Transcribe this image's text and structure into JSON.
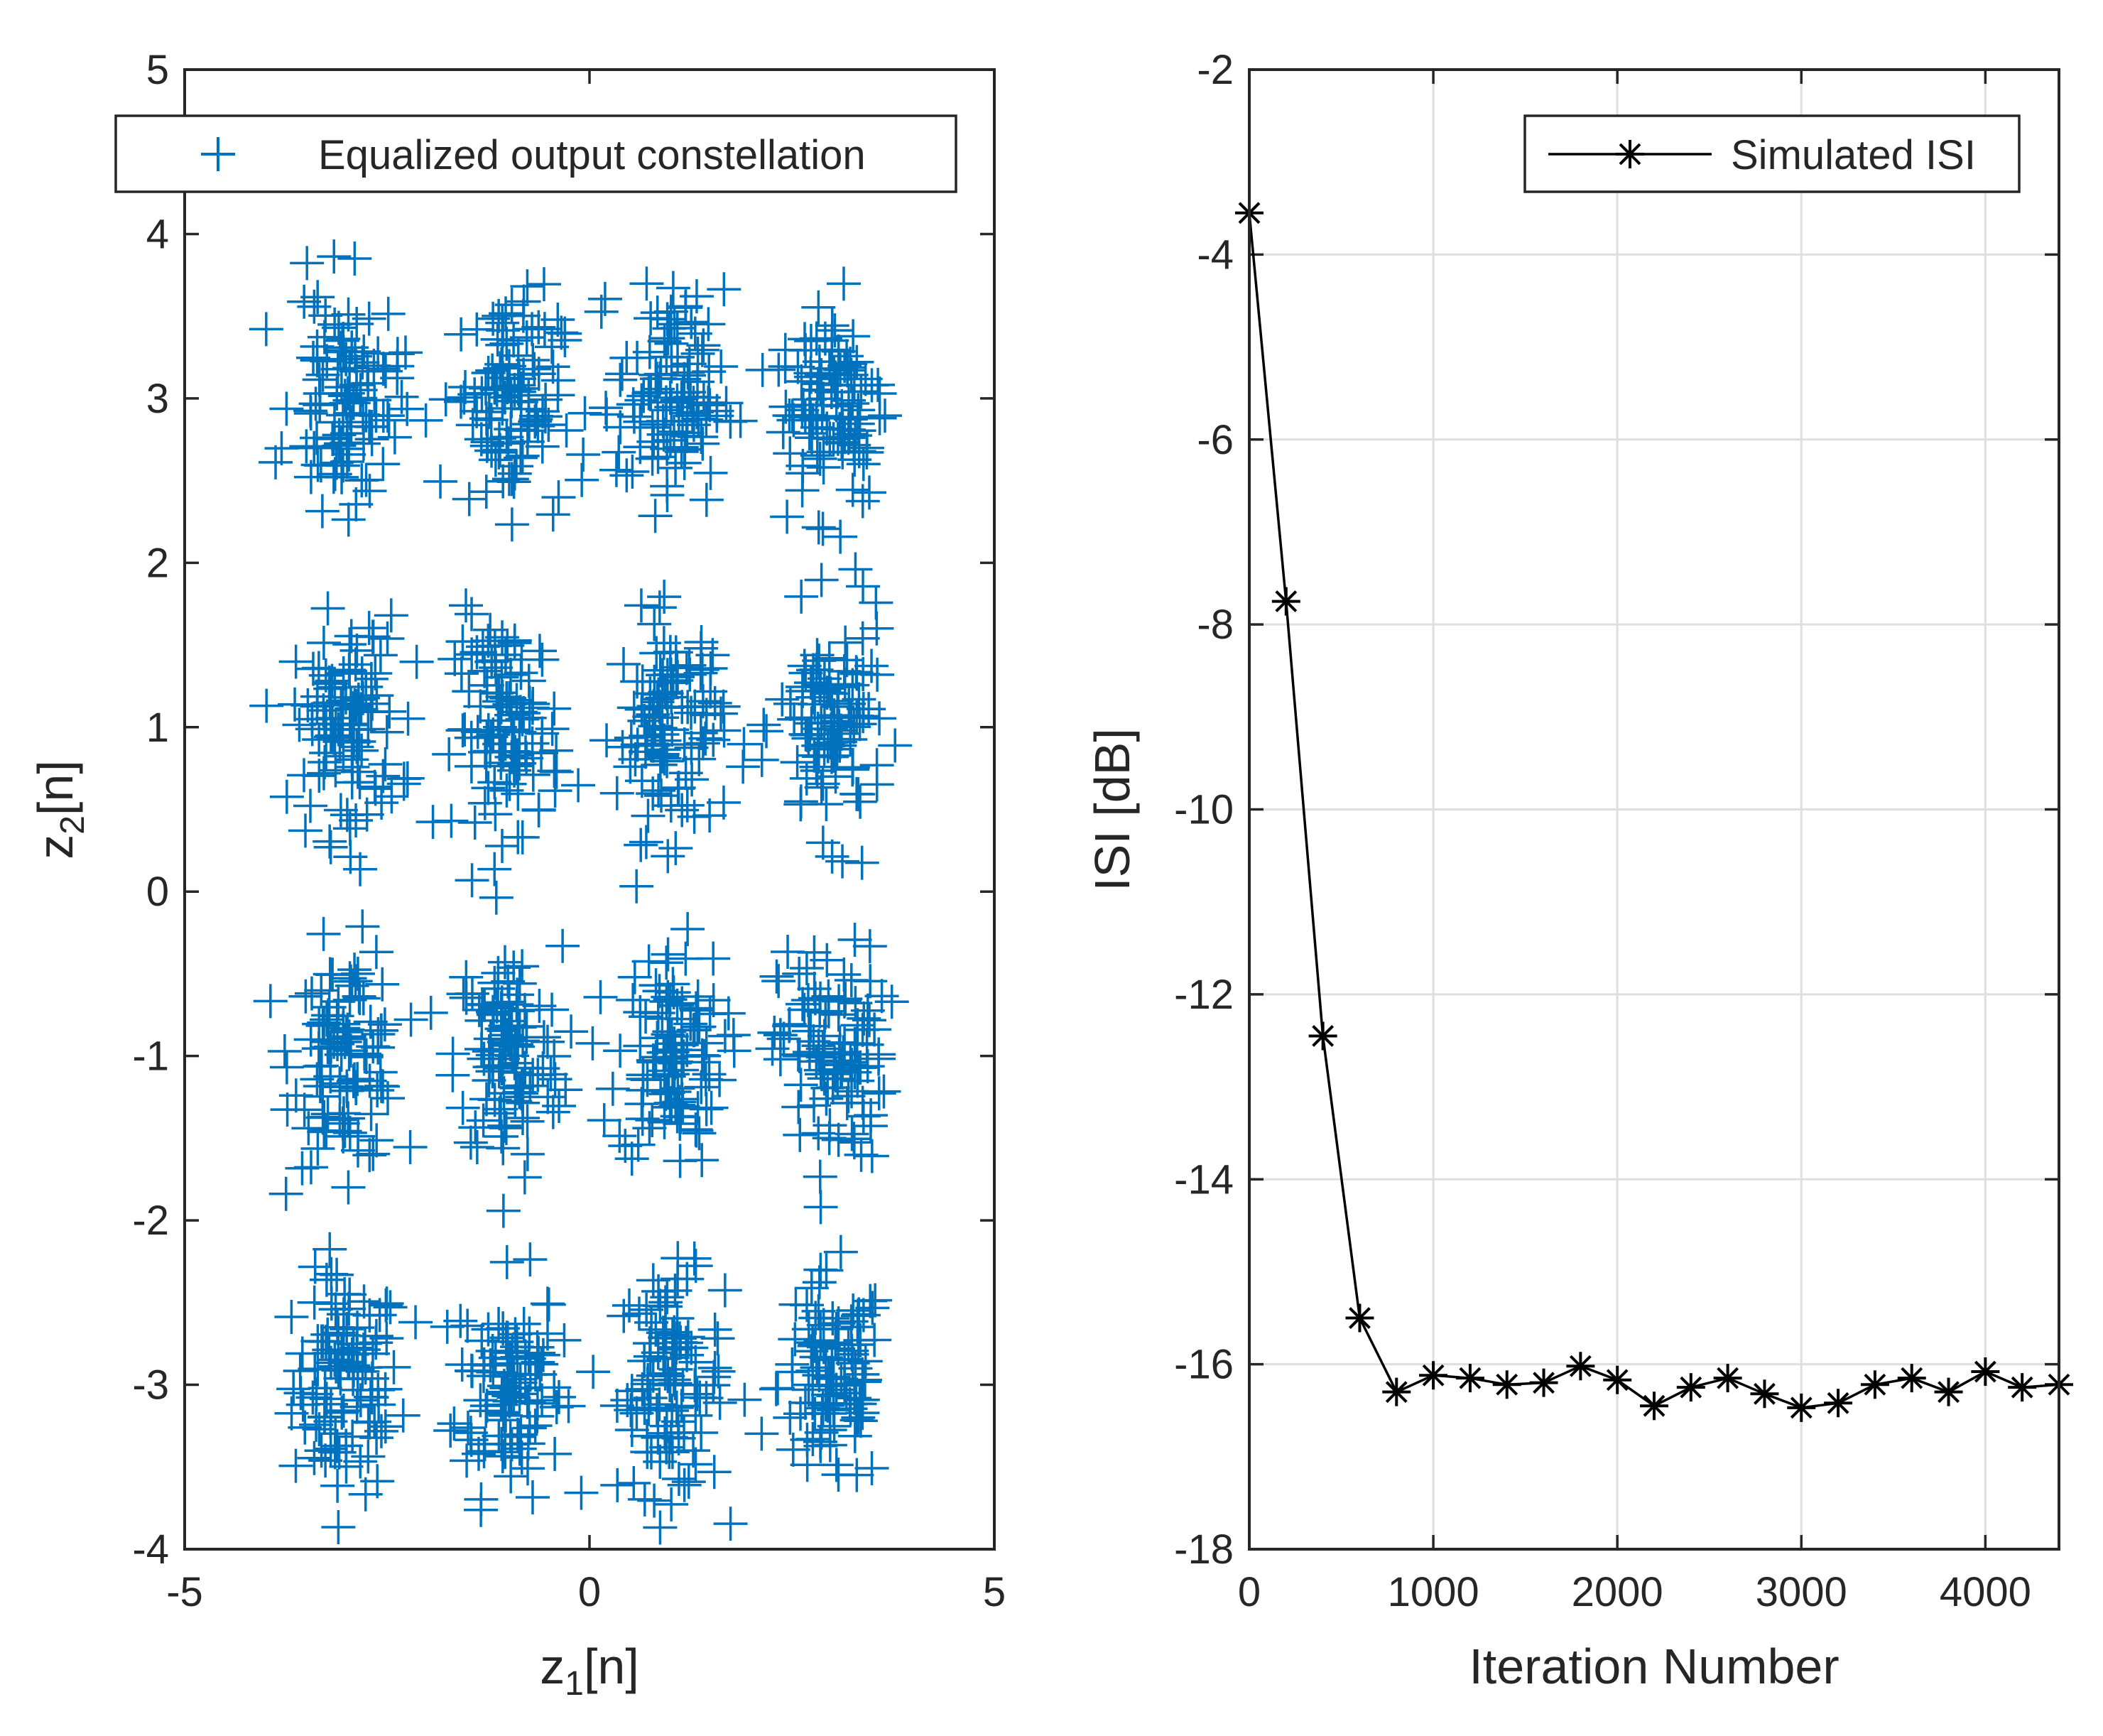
{
  "chart_data": [
    {
      "type": "scatter",
      "marker": "+",
      "color": "#0072BD",
      "legend": "Equalized output constellation",
      "legend_location": "top",
      "xlabel_main": "z",
      "xlabel_sub": "1",
      "xlabel_tail": "[n]",
      "ylabel_main": "z",
      "ylabel_sub": "2",
      "ylabel_tail": "[n]",
      "xlim": [
        -5,
        5
      ],
      "ylim": [
        -4,
        5
      ],
      "xticks": [
        "-5",
        "0",
        "5"
      ],
      "yticks": [
        "-4",
        "-3",
        "-2",
        "-1",
        "0",
        "1",
        "2",
        "3",
        "4",
        "5"
      ],
      "grid": false,
      "clusters": {
        "centers_x": [
          -3,
          -1,
          1,
          3
        ],
        "centers_y": [
          -3,
          -1,
          1,
          3
        ],
        "std_x": 0.33,
        "std_y": 0.33,
        "points_per_cluster": 110
      }
    },
    {
      "type": "line",
      "marker": "*",
      "color": "#000000",
      "legend": "Simulated ISI",
      "legend_location": "top-right",
      "xlabel": "Iteration Number",
      "ylabel": "ISI [dB]",
      "xlim": [
        0,
        4400
      ],
      "ylim": [
        -18,
        -2
      ],
      "xticks": [
        "0",
        "1000",
        "2000",
        "3000",
        "4000"
      ],
      "yticks": [
        "-18",
        "-16",
        "-14",
        "-12",
        "-10",
        "-8",
        "-6",
        "-4",
        "-2"
      ],
      "grid": true,
      "x": [
        0,
        200,
        400,
        600,
        800,
        1000,
        1200,
        1400,
        1600,
        1800,
        2000,
        2200,
        2400,
        2600,
        2800,
        3000,
        3200,
        3400,
        3600,
        3800,
        4000,
        4200,
        4400
      ],
      "y": [
        -3.55,
        -7.75,
        -12.45,
        -15.5,
        -16.3,
        -16.12,
        -16.15,
        -16.22,
        -16.2,
        -16.02,
        -16.17,
        -16.45,
        -16.25,
        -16.15,
        -16.32,
        -16.47,
        -16.42,
        -16.22,
        -16.15,
        -16.3,
        -16.08,
        -16.25,
        -16.22
      ]
    }
  ]
}
